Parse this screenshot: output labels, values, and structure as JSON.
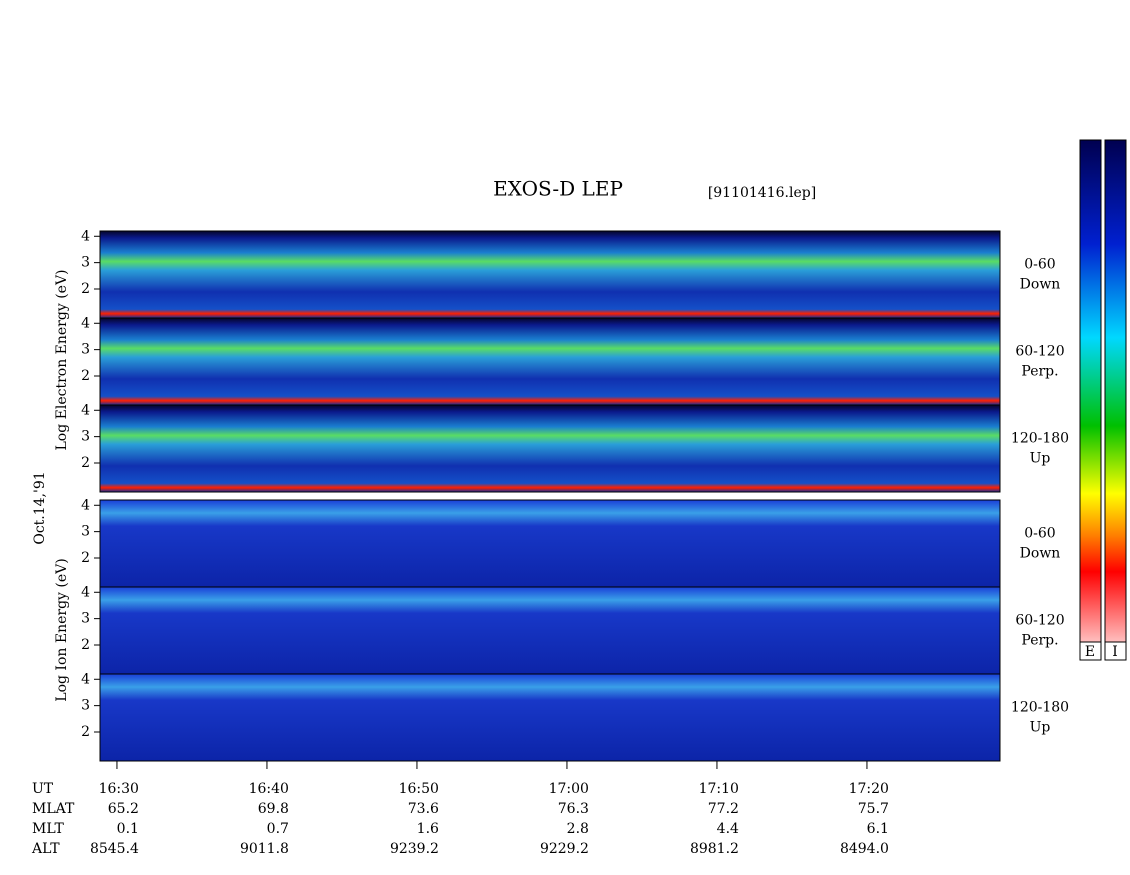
{
  "chart_data": {
    "type": "spectrogram",
    "title": "EXOS-D LEP",
    "subtitle": "[91101416.lep]",
    "date_label": "Oct.14,'91",
    "ylabels": [
      "Log   Electron   Energy (eV)",
      "Log   Ion   Energy (eV)"
    ],
    "panels": [
      {
        "species": "electron",
        "angle": "0-60",
        "direction": "Down",
        "ylim": [
          0.9,
          4.2
        ],
        "yticks": [
          2,
          3,
          4
        ]
      },
      {
        "species": "electron",
        "angle": "60-120",
        "direction": "Perp.",
        "ylim": [
          0.9,
          4.2
        ],
        "yticks": [
          2,
          3,
          4
        ]
      },
      {
        "species": "electron",
        "angle": "120-180",
        "direction": "Up",
        "ylim": [
          0.9,
          4.2
        ],
        "yticks": [
          2,
          3,
          4
        ]
      },
      {
        "species": "ion",
        "angle": "0-60",
        "direction": "Down",
        "ylim": [
          0.9,
          4.2
        ],
        "yticks": [
          2,
          3,
          4
        ]
      },
      {
        "species": "ion",
        "angle": "60-120",
        "direction": "Perp.",
        "ylim": [
          0.9,
          4.2
        ],
        "yticks": [
          2,
          3,
          4
        ]
      },
      {
        "species": "ion",
        "angle": "120-180",
        "direction": "Up",
        "ylim": [
          0.9,
          4.2
        ],
        "yticks": [
          2,
          3,
          4
        ]
      }
    ],
    "x_label": "UT",
    "xlim": [
      988.87,
      1048.87
    ],
    "xticks": [
      {
        "value": 990,
        "label": "16:30"
      },
      {
        "value": 1000,
        "label": "16:40"
      },
      {
        "value": 1010,
        "label": "16:50"
      },
      {
        "value": 1020,
        "label": "17:00"
      },
      {
        "value": 1030,
        "label": "17:10"
      },
      {
        "value": 1040,
        "label": "17:20"
      }
    ],
    "ephemeris": [
      {
        "label": "MLAT",
        "values": [
          "65.2",
          "69.8",
          "73.6",
          "76.3",
          "77.2",
          "75.7"
        ]
      },
      {
        "label": "MLT",
        "values": [
          "0.1",
          "0.7",
          "1.6",
          "2.8",
          "4.4",
          "6.1"
        ]
      },
      {
        "label": "ALT",
        "values": [
          "8545.4",
          "9011.8",
          "9239.2",
          "9229.2",
          "8981.2",
          "8494.0"
        ]
      }
    ],
    "colorbar_labels": [
      "E",
      "I"
    ]
  }
}
